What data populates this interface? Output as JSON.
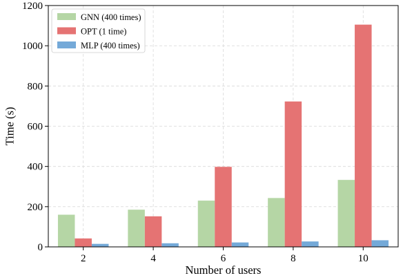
{
  "chart_data": {
    "type": "bar",
    "categories": [
      "2",
      "4",
      "6",
      "8",
      "10"
    ],
    "series": [
      {
        "name": "GNN (400 times)",
        "color": "#b5d6a5",
        "values": [
          160,
          185,
          230,
          243,
          333
        ]
      },
      {
        "name": "OPT (1 time)",
        "color": "#e57373",
        "values": [
          42,
          152,
          398,
          723,
          1105
        ]
      },
      {
        "name": "MLP (400 times)",
        "color": "#74a9d8",
        "values": [
          15,
          18,
          22,
          27,
          33
        ]
      }
    ],
    "xlabel": "Number of users",
    "ylabel": "Time (s)",
    "ylim": [
      0,
      1200
    ],
    "yticks": [
      0,
      200,
      400,
      600,
      800,
      1000,
      1200
    ],
    "grid": true,
    "legend_position": "top-left"
  }
}
